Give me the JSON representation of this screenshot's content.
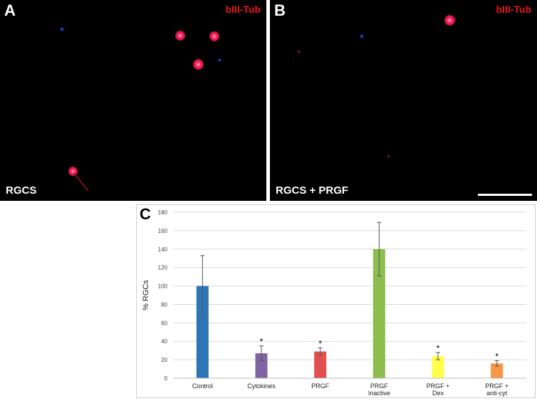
{
  "panel_a": {
    "letter": "A",
    "marker": "bIII-Tub",
    "condition": "RGCS"
  },
  "panel_b": {
    "letter": "B",
    "marker": "bIII-Tub",
    "condition": "RGCS + PRGF"
  },
  "panel_c": {
    "letter": "C"
  },
  "colors": {
    "marker_red": "#e8141e",
    "control": "#2e75b6",
    "cytokines": "#8064a2",
    "prgf": "#e0504e",
    "prgf_inactive": "#8cbd4e",
    "prgf_dex": "#ffff4c",
    "prgf_anticyt": "#f79646"
  },
  "chart_data": {
    "type": "bar",
    "ylabel": "% RGCs",
    "xlabel": "",
    "ylim": [
      0,
      180
    ],
    "yticks": [
      0,
      20,
      40,
      60,
      80,
      100,
      120,
      140,
      160,
      180
    ],
    "grid": true,
    "categories": [
      [
        "Control"
      ],
      [
        "Cytokines"
      ],
      [
        "PRGF"
      ],
      [
        "PRGF",
        "Inactive"
      ],
      [
        "PRGF +",
        "Dex"
      ],
      [
        "PRGF +",
        "anti-cyt"
      ]
    ],
    "values": [
      100,
      27,
      29,
      140,
      24,
      16
    ],
    "errors": [
      33,
      8,
      4,
      29,
      4,
      3
    ],
    "significance": [
      "",
      "*",
      "*",
      "",
      "*",
      "*"
    ],
    "bar_colors": [
      "#2e75b6",
      "#8064a2",
      "#e0504e",
      "#8cbd4e",
      "#ffff4c",
      "#f79646"
    ]
  }
}
